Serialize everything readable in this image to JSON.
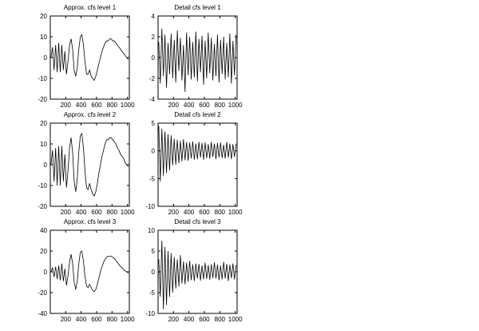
{
  "chart_data": [
    {
      "type": "line",
      "title": "Approx. cfs level 1",
      "xlim": [
        1,
        1024
      ],
      "xticks": [
        200,
        400,
        600,
        800,
        1000
      ],
      "ylim": [
        -20,
        20
      ],
      "yticks": [
        -20,
        -10,
        0,
        10,
        20
      ],
      "x": [
        10,
        30,
        50,
        70,
        90,
        110,
        130,
        150,
        170,
        190,
        210,
        230,
        250,
        270,
        290,
        310,
        330,
        350,
        370,
        390,
        410,
        430,
        450,
        470,
        490,
        510,
        530,
        550,
        570,
        590,
        610,
        630,
        650,
        670,
        690,
        710,
        730,
        750,
        770,
        790,
        810,
        830,
        850,
        870,
        890,
        910,
        930,
        950,
        970,
        990,
        1010
      ],
      "series": [
        {
          "color": "#000000",
          "values": [
            0,
            5,
            -6,
            6,
            -7,
            7,
            -7,
            6,
            -6,
            3,
            -8,
            -2,
            6,
            9,
            4,
            -6,
            -9,
            -5,
            4,
            10,
            11,
            6,
            -2,
            -8,
            -8,
            -6,
            -9,
            -10,
            -11,
            -9,
            -6,
            -3,
            0,
            3,
            5,
            7,
            8,
            8,
            9,
            9,
            8,
            8,
            7,
            6,
            5,
            4,
            3,
            2,
            1,
            0,
            -1
          ]
        }
      ]
    },
    {
      "type": "line",
      "title": "Detail cfs level 1",
      "xlim": [
        1,
        1024
      ],
      "xticks": [
        200,
        400,
        600,
        800,
        1000
      ],
      "ylim": [
        -4,
        4
      ],
      "yticks": [
        -4,
        -2,
        0,
        2,
        4
      ],
      "x": [
        10,
        30,
        50,
        70,
        90,
        110,
        130,
        150,
        170,
        190,
        210,
        230,
        250,
        270,
        290,
        310,
        330,
        350,
        370,
        390,
        410,
        430,
        450,
        470,
        490,
        510,
        530,
        550,
        570,
        590,
        610,
        630,
        650,
        670,
        690,
        710,
        730,
        750,
        770,
        790,
        810,
        830,
        850,
        870,
        890,
        910,
        930,
        950,
        970,
        990,
        1010
      ],
      "series": [
        {
          "color": "#000000",
          "values": [
            1.5,
            -2.5,
            2.8,
            -1.8,
            2.2,
            -2.9,
            1.4,
            -1.6,
            2.3,
            -2.0,
            1.7,
            -2.4,
            2.6,
            -1.3,
            1.9,
            -2.2,
            1.2,
            -3.3,
            2.4,
            -1.7,
            2.0,
            -2.1,
            1.5,
            -1.9,
            2.5,
            -2.3,
            1.8,
            -1.4,
            2.1,
            -2.6,
            1.6,
            -2.0,
            2.4,
            -1.5,
            1.9,
            -2.2,
            1.3,
            -1.8,
            2.2,
            -2.4,
            1.7,
            -1.6,
            2.0,
            -2.1,
            1.4,
            -1.9,
            2.3,
            -2.5,
            1.6,
            -1.7,
            2.2
          ]
        }
      ]
    },
    {
      "type": "line",
      "title": "Approx. cfs level 2",
      "xlim": [
        1,
        1024
      ],
      "xticks": [
        200,
        400,
        600,
        800,
        1000
      ],
      "ylim": [
        -20,
        20
      ],
      "yticks": [
        -20,
        -10,
        0,
        10,
        20
      ],
      "x": [
        10,
        30,
        50,
        70,
        90,
        110,
        130,
        150,
        170,
        190,
        210,
        230,
        250,
        270,
        290,
        310,
        330,
        350,
        370,
        390,
        410,
        430,
        450,
        470,
        490,
        510,
        530,
        550,
        570,
        590,
        610,
        630,
        650,
        670,
        690,
        710,
        730,
        750,
        770,
        790,
        810,
        830,
        850,
        870,
        890,
        910,
        930,
        950,
        970,
        990,
        1010
      ],
      "series": [
        {
          "color": "#000000",
          "values": [
            0,
            7,
            -8,
            8,
            -10,
            9,
            -10,
            9,
            -8,
            5,
            -11,
            -3,
            8,
            13,
            6,
            -8,
            -13,
            -7,
            6,
            14,
            15,
            8,
            -3,
            -11,
            -12,
            -9,
            -12,
            -14,
            -15,
            -13,
            -9,
            -4,
            0,
            4,
            7,
            10,
            12,
            12,
            13,
            13,
            12,
            11,
            10,
            8,
            7,
            5,
            4,
            3,
            1,
            0,
            -1
          ]
        }
      ]
    },
    {
      "type": "line",
      "title": "Detail cfs level 2",
      "xlim": [
        1,
        1024
      ],
      "xticks": [
        200,
        400,
        600,
        800,
        1000
      ],
      "ylim": [
        -10,
        5
      ],
      "yticks": [
        -10,
        -5,
        0,
        5
      ],
      "x": [
        10,
        30,
        50,
        70,
        90,
        110,
        130,
        150,
        170,
        190,
        210,
        230,
        250,
        270,
        290,
        310,
        330,
        350,
        370,
        390,
        410,
        430,
        450,
        470,
        490,
        510,
        530,
        550,
        570,
        590,
        610,
        630,
        650,
        670,
        690,
        710,
        730,
        750,
        770,
        790,
        810,
        830,
        850,
        870,
        890,
        910,
        930,
        950,
        970,
        990,
        1010
      ],
      "series": [
        {
          "color": "#000000",
          "values": [
            4.5,
            -5.5,
            4,
            -4.5,
            3.5,
            -4,
            3,
            -3.5,
            2.8,
            -2.6,
            2.2,
            -2.5,
            2,
            -2.2,
            1.8,
            -1.9,
            2.1,
            -1.7,
            1.6,
            -1.8,
            1.5,
            -1.4,
            1.7,
            -1.6,
            1.3,
            -1.5,
            1.6,
            -1.2,
            1.4,
            -1.6,
            1.5,
            -1.3,
            1.2,
            -1.4,
            1.6,
            -1.1,
            1.3,
            -1.5,
            1.4,
            -1.2,
            1.5,
            -1.3,
            1.1,
            -1.4,
            1.6,
            -1.2,
            1.3,
            -1.5,
            1.2,
            -1.1,
            1.3
          ]
        }
      ]
    },
    {
      "type": "line",
      "title": "Approx. cfs level 3",
      "xlim": [
        1,
        1024
      ],
      "xticks": [
        200,
        400,
        600,
        800,
        1000
      ],
      "ylim": [
        -40,
        40
      ],
      "yticks": [
        -40,
        -20,
        0,
        20,
        40
      ],
      "x": [
        10,
        30,
        50,
        70,
        90,
        110,
        130,
        150,
        170,
        190,
        210,
        230,
        250,
        270,
        290,
        310,
        330,
        350,
        370,
        390,
        410,
        430,
        450,
        470,
        490,
        510,
        530,
        550,
        570,
        590,
        610,
        630,
        650,
        670,
        690,
        710,
        730,
        750,
        770,
        790,
        810,
        830,
        850,
        870,
        890,
        910,
        930,
        950,
        970,
        990,
        1010
      ],
      "series": [
        {
          "color": "#000000",
          "values": [
            0,
            4,
            -5,
            5,
            -7,
            6,
            -8,
            8,
            -9,
            3,
            -13,
            -4,
            9,
            17,
            8,
            -10,
            -17,
            -9,
            8,
            19,
            20,
            10,
            -4,
            -14,
            -15,
            -12,
            -15,
            -18,
            -19,
            -17,
            -12,
            -6,
            0,
            5,
            9,
            12,
            14,
            15,
            15,
            15,
            14,
            13,
            11,
            9,
            7,
            5,
            4,
            2,
            1,
            0,
            -1
          ]
        }
      ]
    },
    {
      "type": "line",
      "title": "Detail cfs level 3",
      "xlim": [
        1,
        1024
      ],
      "xticks": [
        200,
        400,
        600,
        800,
        1000
      ],
      "ylim": [
        -10,
        10
      ],
      "yticks": [
        -10,
        -5,
        0,
        5,
        10
      ],
      "x": [
        10,
        30,
        50,
        70,
        90,
        110,
        130,
        150,
        170,
        190,
        210,
        230,
        250,
        270,
        290,
        310,
        330,
        350,
        370,
        390,
        410,
        430,
        450,
        470,
        490,
        510,
        530,
        550,
        570,
        590,
        610,
        630,
        650,
        670,
        690,
        710,
        730,
        750,
        770,
        790,
        810,
        830,
        850,
        870,
        890,
        910,
        930,
        950,
        970,
        990,
        1010
      ],
      "series": [
        {
          "color": "#000000",
          "values": [
            3,
            -6,
            7.5,
            -9,
            6,
            -8,
            5,
            -6,
            4.5,
            -5,
            3.5,
            -4,
            3,
            -3.5,
            4,
            -2.8,
            2.5,
            -3,
            2.2,
            -2.4,
            2.6,
            -2,
            1.8,
            -2.2,
            2,
            -1.6,
            1.9,
            -2.1,
            1.5,
            -1.8,
            2.2,
            -1.7,
            1.6,
            -1.9,
            1.8,
            -1.5,
            2.3,
            -1.6,
            1.7,
            -2,
            1.5,
            -1.8,
            2.4,
            -1.6,
            1.9,
            -2.2,
            1.7,
            -1.5,
            2,
            -1.8,
            1.6
          ]
        }
      ]
    }
  ]
}
